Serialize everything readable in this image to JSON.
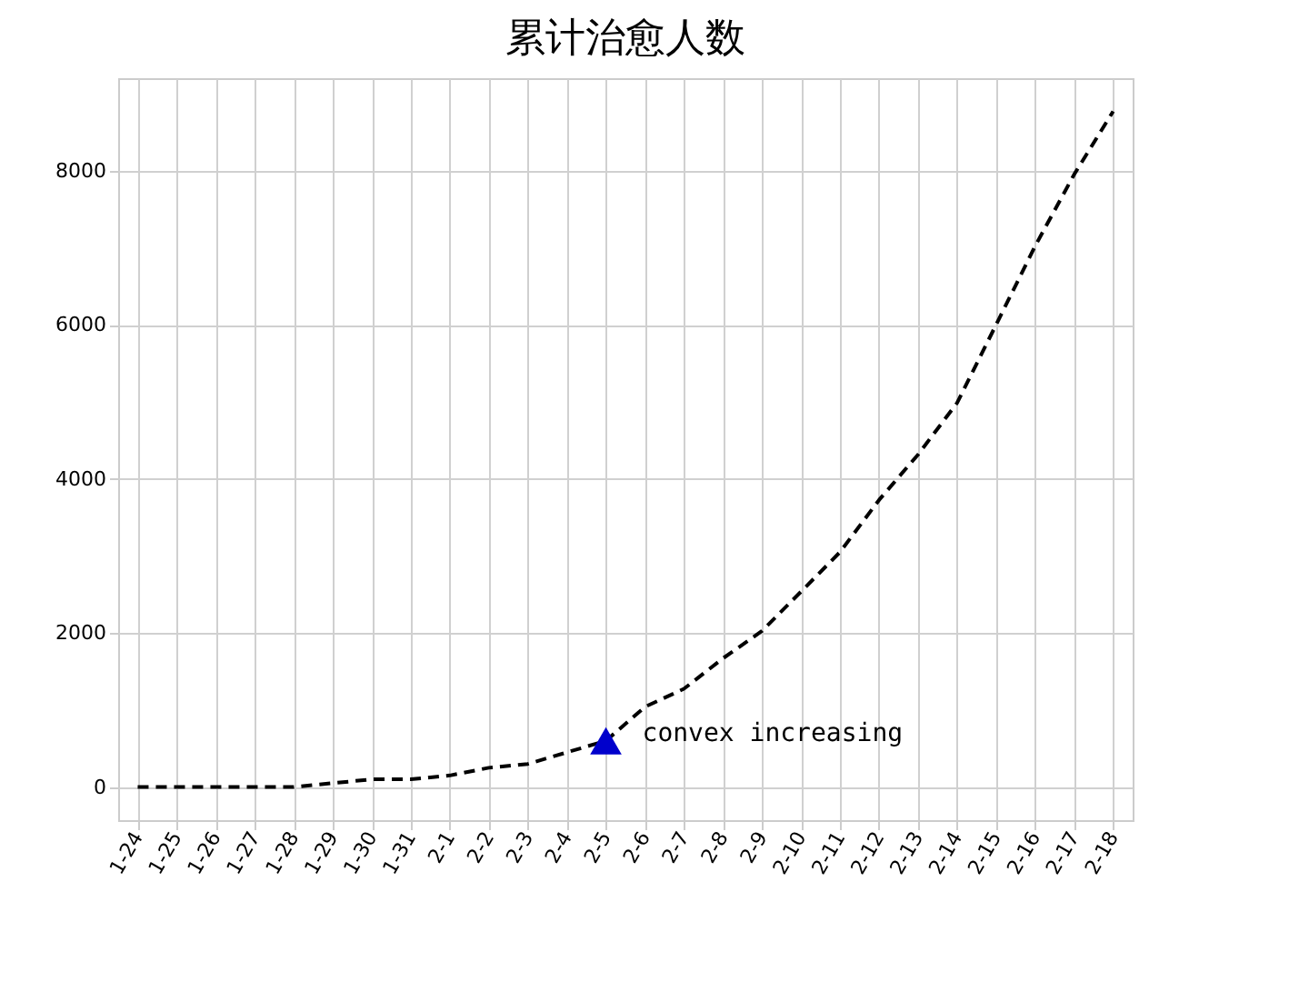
{
  "chart_data": {
    "type": "line",
    "title": "累计治愈人数",
    "categories": [
      "1-24",
      "1-25",
      "1-26",
      "1-27",
      "1-28",
      "1-29",
      "1-30",
      "1-31",
      "2-1",
      "2-2",
      "2-3",
      "2-4",
      "2-5",
      "2-6",
      "2-7",
      "2-8",
      "2-9",
      "2-10",
      "2-11",
      "2-12",
      "2-13",
      "2-14",
      "2-15",
      "2-16",
      "2-17",
      "2-18"
    ],
    "series": [
      {
        "color": "#000000",
        "line_style": "dashed",
        "values": [
          0,
          0,
          0,
          0,
          0,
          50,
          100,
          100,
          150,
          250,
          300,
          450,
          600,
          1040,
          1275,
          1670,
          2025,
          2535,
          3050,
          3725,
          4315,
          4985,
          6000,
          7020,
          7950,
          8770
        ]
      },
      {
        "type": "scatter",
        "marker": "triangle",
        "color": "#0000cc",
        "x": [
          "2-5"
        ],
        "values": [
          600
        ]
      }
    ],
    "annotations": [
      {
        "text": "convex increasing",
        "x": "2-5",
        "y": 600
      }
    ],
    "ylim": [
      -430,
      9200
    ],
    "yticks": [
      0,
      2000,
      4000,
      6000,
      8000
    ],
    "grid": true
  }
}
